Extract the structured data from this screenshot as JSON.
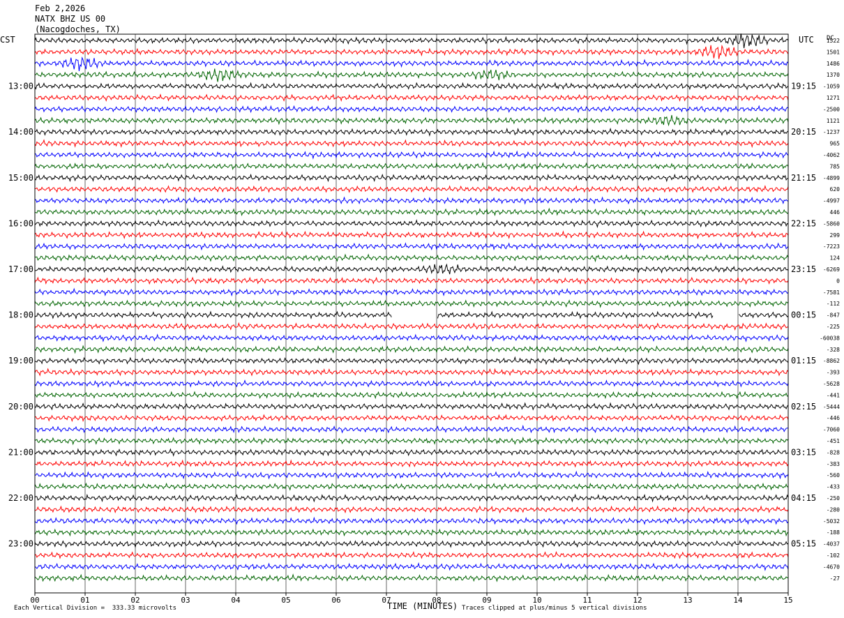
{
  "header": {
    "date": "Feb 2,2026",
    "station": "NATX BHZ US 00",
    "location": "(Nacogdoches, TX)"
  },
  "left_axis_title": "CST",
  "right_axis_title": "UTC",
  "dc_label": "DC",
  "footer": {
    "scale_note": "Each Vertical Division =  333.33 microvolts",
    "clip_note": "Traces clipped at plus/minus 5 vertical divisions"
  },
  "colors": {
    "trace_cycle": [
      "#000000",
      "#ff0000",
      "#0000ff",
      "#006400"
    ],
    "grid": "#000000"
  },
  "chart_data": {
    "type": "line",
    "subtype": "helicorder",
    "xlabel": "TIME (MINUTES)",
    "xlim": [
      0,
      15
    ],
    "x_ticks": [
      "00",
      "01",
      "02",
      "03",
      "04",
      "05",
      "06",
      "07",
      "08",
      "09",
      "10",
      "11",
      "12",
      "13",
      "14",
      "15"
    ],
    "rows": 48,
    "minutes_per_row": 15,
    "left_hour_labels": [
      "13:00",
      "14:00",
      "15:00",
      "16:00",
      "17:00",
      "18:00",
      "19:00",
      "20:00",
      "21:00",
      "22:00",
      "23:00"
    ],
    "right_hour_labels": [
      "19:15",
      "20:15",
      "21:15",
      "22:15",
      "23:15",
      "00:15",
      "01:15",
      "02:15",
      "03:15",
      "04:15",
      "05:15"
    ],
    "hour_label_first_row": 4,
    "dc_offsets": [
      "1522",
      "1501",
      "1486",
      "1370",
      "-1059",
      "1271",
      "-2500",
      "1121",
      "-1237",
      "965",
      "-4062",
      "785",
      "-4899",
      "620",
      "-4997",
      "446",
      "-5860",
      "299",
      "-7223",
      "124",
      "-6269",
      "0",
      "-7581",
      "-112",
      "-847",
      "-225",
      "-60038",
      "-328",
      "-8862",
      "-393",
      "-5628",
      "-441",
      "-5444",
      "-446",
      "-7060",
      "-451",
      "-828",
      "-383",
      "-560",
      "-433",
      "-250",
      "-280",
      "-5032",
      "-188",
      "-4037",
      "-102",
      "-4670",
      "-27"
    ],
    "events": [
      {
        "row": 0,
        "minute": 14.2,
        "amplitude": "high"
      },
      {
        "row": 1,
        "minute": 13.6,
        "amplitude": "high"
      },
      {
        "row": 2,
        "minute": 0.9,
        "amplitude": "high"
      },
      {
        "row": 3,
        "minute": 3.7,
        "amplitude": "high"
      },
      {
        "row": 3,
        "minute": 9.1,
        "amplitude": "medium"
      },
      {
        "row": 7,
        "minute": 12.6,
        "amplitude": "medium"
      },
      {
        "row": 20,
        "minute": 8.1,
        "amplitude": "medium"
      }
    ],
    "gaps": [
      {
        "row": 24,
        "start_minute": 7.1,
        "end_minute": 8.0
      },
      {
        "row": 24,
        "start_minute": 13.5,
        "end_minute": 14.0
      }
    ]
  }
}
